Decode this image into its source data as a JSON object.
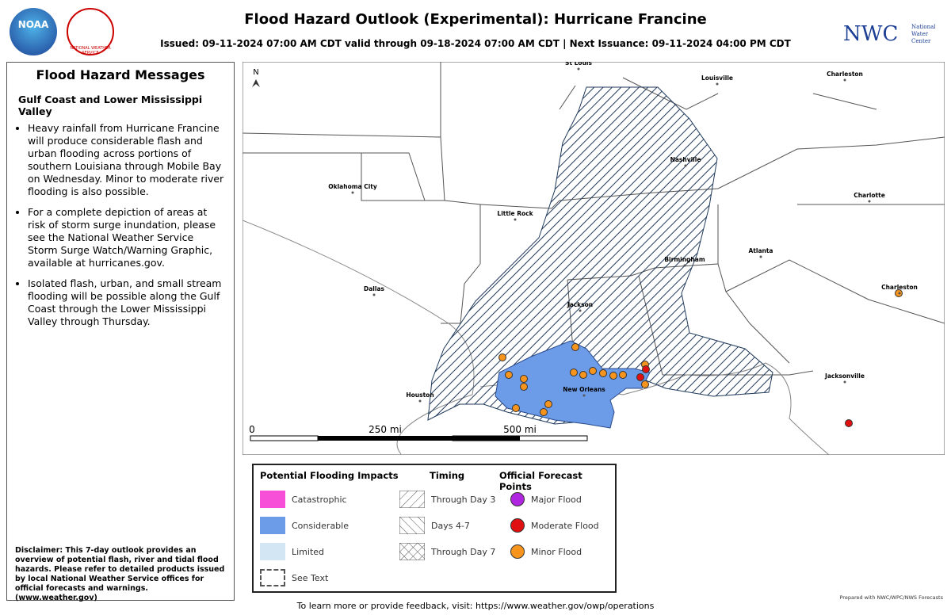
{
  "header": {
    "title": "Flood Hazard Outlook (Experimental): Hurricane Francine",
    "issued": "Issued: 09-11-2024 07:00 AM CDT valid through 09-18-2024 07:00 AM CDT | Next Issuance: 09-11-2024 04:00 PM CDT",
    "noaa": "NOAA",
    "nws": "NATIONAL WEATHER SERVICE",
    "nwc": "NWC",
    "nwc_full": [
      "National",
      "Water",
      "Center"
    ]
  },
  "sidebar": {
    "heading": "Flood Hazard Messages",
    "region": "Gulf Coast and Lower Mississippi Valley",
    "bullets": [
      "Heavy rainfall from Hurricane Francine will produce considerable flash and urban flooding across portions of southern Louisiana through Mobile Bay on Wednesday. Minor to moderate river flooding is also possible.",
      "For a complete depiction of areas at risk of storm surge inundation, please see the National Weather Service Storm Surge Watch/Warning Graphic, available at hurricanes.gov.",
      "Isolated flash, urban, and small stream flooding will be possible along the Gulf Coast through the Lower Mississippi Valley through Thursday."
    ],
    "disclaimer": "Disclaimer: This 7-day outlook provides an overview of potential flash, river and tidal flood hazards. Please refer to detailed products issued by local National Weather Service offices for official forecasts and warnings. (www.weather.gov)"
  },
  "map": {
    "north": "N",
    "cities": [
      "St Louis",
      "Louisville",
      "Charleston",
      "Nashville",
      "Oklahoma City",
      "Little Rock",
      "Charlotte",
      "Birmingham",
      "Atlanta",
      "Dallas",
      "Jackson",
      "Charleston",
      "Houston",
      "New Orleans",
      "Jacksonville"
    ],
    "scale": [
      "0",
      "250 mi",
      "500 mi"
    ]
  },
  "legend": {
    "impacts": {
      "heading": "Potential Flooding Impacts",
      "items": [
        "Catastrophic",
        "Considerable",
        "Limited",
        "See Text"
      ]
    },
    "timing": {
      "heading": "Timing",
      "items": [
        "Through Day 3",
        "Days 4-7",
        "Through Day 7"
      ]
    },
    "points": {
      "heading": "Official Forecast Points",
      "items": [
        "Major Flood",
        "Moderate Flood",
        "Minor Flood"
      ]
    }
  },
  "footer": {
    "feedback": "To learn more or provide feedback, visit: https://www.weather.gov/owp/operations",
    "credit": "Prepared with NWC/WPC/NWS Forecasts"
  }
}
